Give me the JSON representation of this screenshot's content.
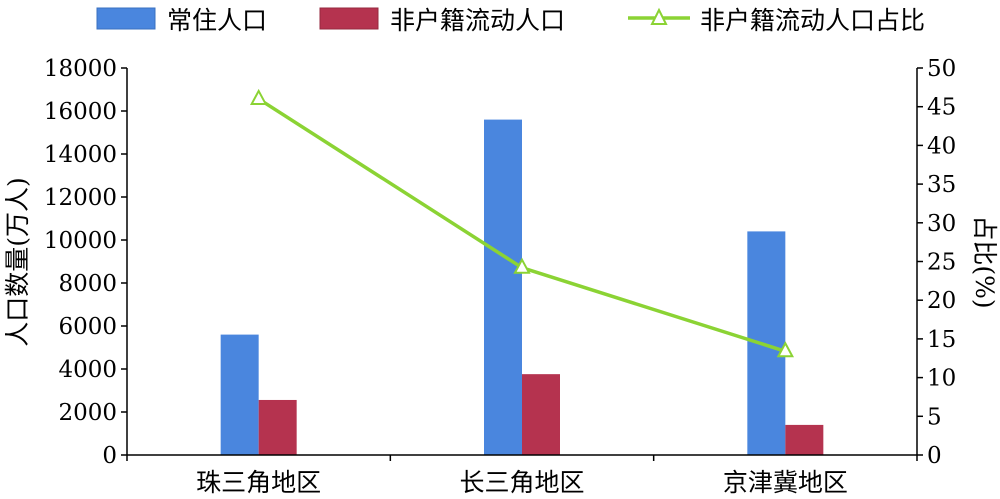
{
  "chart_data": {
    "type": "bar",
    "categories": [
      "珠三角地区",
      "长三角地区",
      "京津冀地区"
    ],
    "series": [
      {
        "name": "常住人口",
        "type": "bar",
        "axis": "left",
        "color": "#4a86de",
        "values": [
          5600,
          15600,
          10400
        ]
      },
      {
        "name": "非户籍流动人口",
        "type": "bar",
        "axis": "left",
        "color": "#b5334f",
        "values": [
          2560,
          3760,
          1400
        ]
      },
      {
        "name": "非户籍流动人口占比",
        "type": "line",
        "axis": "right",
        "color": "#8bd334",
        "marker": "triangle",
        "values": [
          46.0,
          24.2,
          13.4
        ]
      }
    ],
    "ylabel_left": "人口数量(万人)",
    "ylabel_right": "占比(%)",
    "ylim_left": [
      0,
      18000
    ],
    "ylim_right": [
      0,
      50
    ],
    "yticks_left": [
      "0",
      "2000",
      "4000",
      "6000",
      "8000",
      "10000",
      "12000",
      "14000",
      "16000",
      "18000"
    ],
    "yticks_right": [
      "0",
      "5",
      "10",
      "15",
      "20",
      "25",
      "30",
      "35",
      "40",
      "45",
      "50"
    ],
    "legend_position": "top",
    "grid": false
  }
}
